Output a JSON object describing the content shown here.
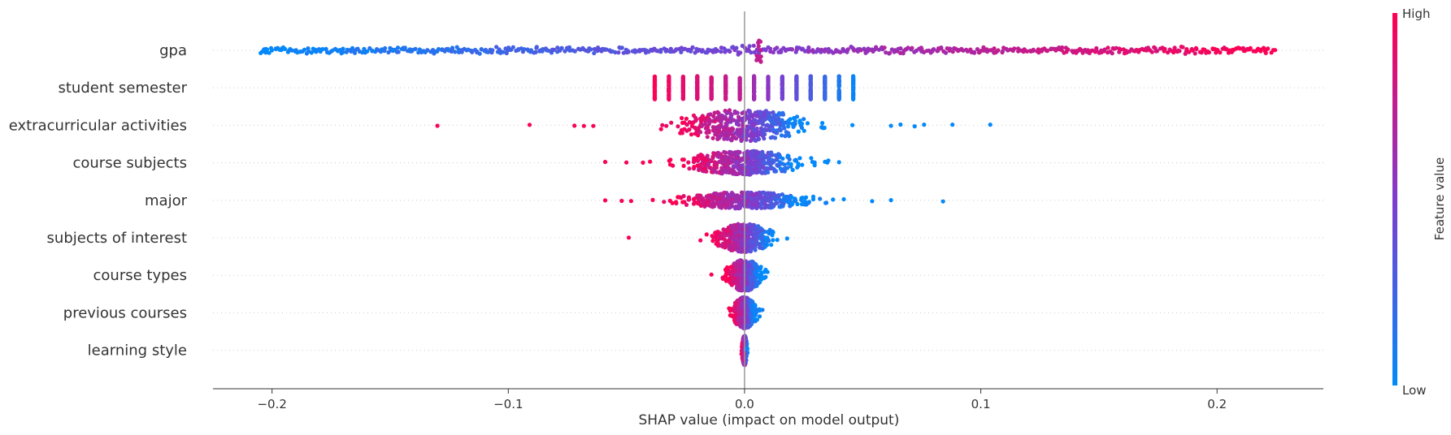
{
  "chart_data": {
    "type": "scatter",
    "subtype": "shap-beeswarm",
    "xlabel": "SHAP value (impact on model output)",
    "xlim": [
      -0.225,
      0.245
    ],
    "x_ticks": [
      -0.2,
      -0.1,
      0.0,
      0.1,
      0.2
    ],
    "x_tick_labels": [
      "−0.2",
      "−0.1",
      "0.0",
      "0.1",
      "0.2"
    ],
    "colorbar": {
      "label": "Feature value",
      "high": "High",
      "low": "Low",
      "colors": [
        "#008bfb",
        "#7f3cce",
        "#ff0052"
      ]
    },
    "features": [
      {
        "name": "gpa",
        "style": "uniform",
        "min": -0.205,
        "max": 0.224,
        "color_trend": "left-low-right-high",
        "outliers": []
      },
      {
        "name": "student semester",
        "style": "discrete",
        "columns": [
          {
            "x": -0.038,
            "v": 0.98
          },
          {
            "x": -0.032,
            "v": 0.94
          },
          {
            "x": -0.026,
            "v": 0.9
          },
          {
            "x": -0.02,
            "v": 0.86
          },
          {
            "x": -0.014,
            "v": 0.82
          },
          {
            "x": -0.008,
            "v": 0.78
          },
          {
            "x": -0.002,
            "v": 0.74
          },
          {
            "x": 0.004,
            "v": 0.62
          },
          {
            "x": 0.01,
            "v": 0.54
          },
          {
            "x": 0.016,
            "v": 0.46
          },
          {
            "x": 0.022,
            "v": 0.38
          },
          {
            "x": 0.028,
            "v": 0.3
          },
          {
            "x": 0.034,
            "v": 0.22
          },
          {
            "x": 0.04,
            "v": 0.12
          },
          {
            "x": 0.046,
            "v": 0.04
          }
        ]
      },
      {
        "name": "extracurricular activities",
        "style": "cluster",
        "center": 0.0,
        "spread": 0.022,
        "height": 0.42,
        "left_color": "high",
        "right_color": "low",
        "outliers": [
          -0.13,
          -0.091,
          -0.072,
          -0.068,
          -0.064,
          0.062,
          0.066,
          0.072,
          0.076,
          0.088,
          0.104
        ]
      },
      {
        "name": "course subjects",
        "style": "cluster",
        "center": 0.0,
        "spread": 0.02,
        "height": 0.32,
        "left_color": "high",
        "right_color": "low",
        "outliers": [
          -0.059,
          -0.05,
          -0.043,
          -0.04,
          0.035,
          0.04
        ]
      },
      {
        "name": "major",
        "style": "cluster",
        "center": 0.0,
        "spread": 0.022,
        "height": 0.22,
        "left_color": "high",
        "right_color": "low",
        "outliers": [
          -0.059,
          -0.052,
          -0.048,
          0.042,
          0.054,
          0.062,
          0.084
        ]
      },
      {
        "name": "subjects of interest",
        "style": "cluster",
        "center": 0.0,
        "spread": 0.01,
        "height": 0.38,
        "left_color": "high",
        "right_color": "low",
        "outliers": [
          -0.049,
          0.018
        ]
      },
      {
        "name": "course types",
        "style": "cluster",
        "center": 0.0,
        "spread": 0.006,
        "height": 0.42,
        "left_color": "high",
        "right_color": "low",
        "outliers": [
          -0.014,
          0.007
        ]
      },
      {
        "name": "previous courses",
        "style": "cluster",
        "center": 0.0,
        "spread": 0.004,
        "height": 0.42,
        "left_color": "high",
        "right_color": "low",
        "outliers": []
      },
      {
        "name": "learning style",
        "style": "cluster",
        "center": 0.0,
        "spread": 0.0008,
        "height": 0.4,
        "left_color": "high",
        "right_color": "low",
        "outliers": []
      }
    ]
  }
}
